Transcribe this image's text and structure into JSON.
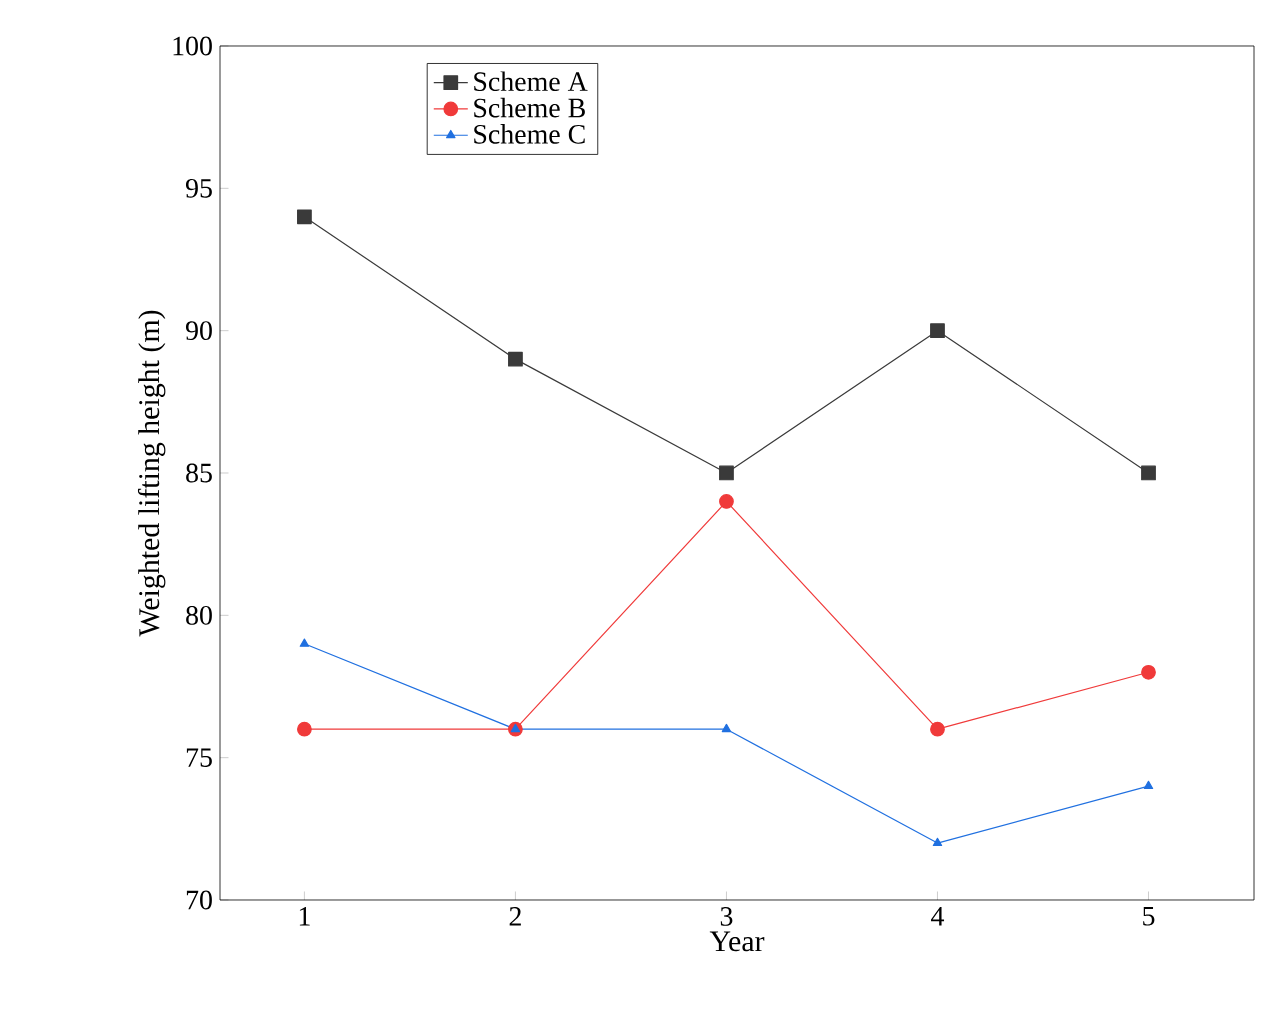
{
  "chart_data": {
    "type": "line",
    "xlabel": "Year",
    "ylabel": "Weighted lifting height (m)",
    "x": [
      1,
      2,
      3,
      4,
      5
    ],
    "series": [
      {
        "name": "Scheme A",
        "color": "#3a3a3a",
        "marker": "square",
        "values": [
          94,
          89,
          85,
          90,
          85
        ]
      },
      {
        "name": "Scheme B",
        "color": "#f03a3a",
        "marker": "circle",
        "values": [
          76,
          76,
          84,
          76,
          78
        ]
      },
      {
        "name": "Scheme C",
        "color": "#2070e0",
        "marker": "triangle",
        "values": [
          79,
          76,
          76,
          72,
          74
        ]
      }
    ],
    "xlim": [
      0.6,
      5.5
    ],
    "ylim": [
      70,
      100
    ],
    "xticks": [
      1,
      2,
      3,
      4,
      5
    ],
    "yticks": [
      70,
      75,
      80,
      85,
      90,
      95,
      100
    ],
    "legend": "top left",
    "grid": false,
    "line_style": "solid"
  }
}
